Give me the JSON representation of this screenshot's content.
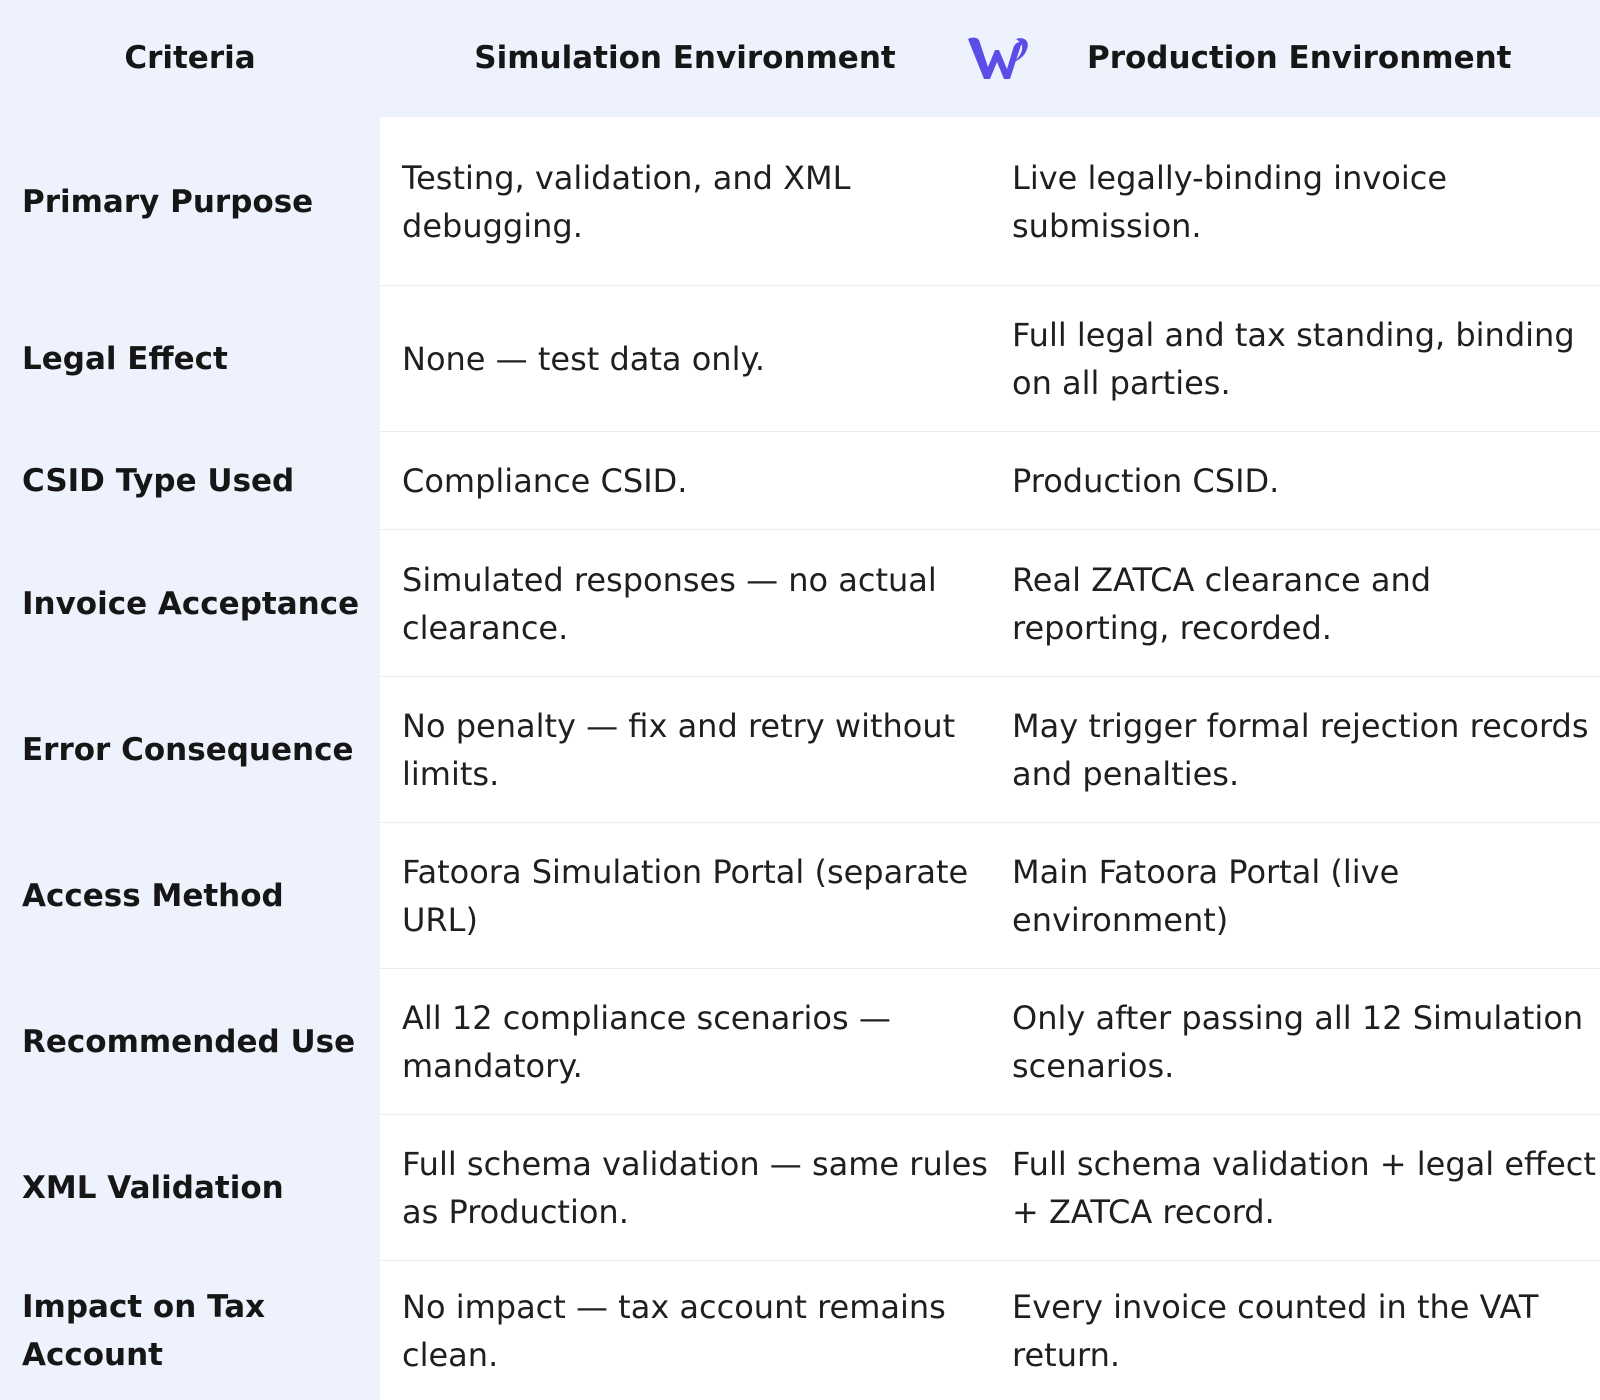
{
  "header": {
    "criteria": "Criteria",
    "simulation": "Simulation Environment",
    "production": "Production Environment",
    "logo_icon": "brand-w-logo-icon",
    "logo_color": "#5b4ee8"
  },
  "rows": [
    {
      "criteria": "Primary Purpose",
      "simulation": "Testing, validation, and XML debugging.",
      "production": "Live legally-binding invoice submission."
    },
    {
      "criteria": "Legal Effect",
      "simulation": "None — test data only.",
      "production": "Full legal and tax standing, binding on all parties."
    },
    {
      "criteria": "CSID Type Used",
      "simulation": "Compliance CSID.",
      "production": "Production CSID."
    },
    {
      "criteria": "Invoice Acceptance",
      "simulation": "Simulated responses — no actual clearance.",
      "production": "Real ZATCA clearance and reporting, recorded."
    },
    {
      "criteria": "Error Consequence",
      "simulation": "No penalty — fix and retry without limits.",
      "production": "May trigger formal rejection records and penalties."
    },
    {
      "criteria": "Access Method",
      "simulation": "Fatoora Simulation Portal (separate URL)",
      "production": "Main Fatoora Portal (live environment)"
    },
    {
      "criteria": "Recommended Use",
      "simulation": "All 12 compliance scenarios — mandatory.",
      "production": "Only after passing all 12 Simulation scenarios."
    },
    {
      "criteria": "XML Validation",
      "simulation": "Full schema validation — same rules as Production.",
      "production": "Full schema validation + legal effect + ZATCA record."
    },
    {
      "criteria": "Impact on Tax Account",
      "simulation": "No impact — tax account remains clean.",
      "production": "Every invoice counted in the VAT return."
    }
  ]
}
